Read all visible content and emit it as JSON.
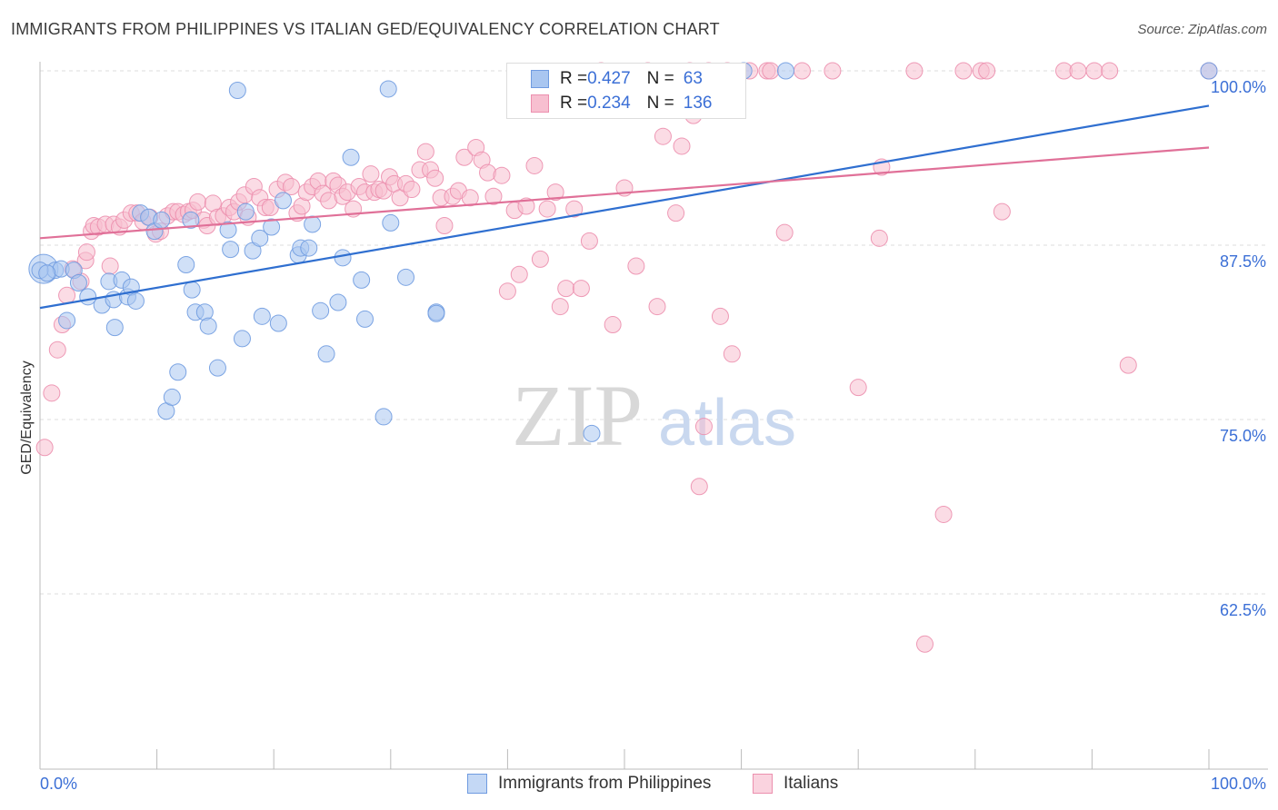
{
  "title": "IMMIGRANTS FROM PHILIPPINES VS ITALIAN GED/EQUIVALENCY CORRELATION CHART",
  "source": "Source: ZipAtlas.com",
  "watermark": {
    "zip": "ZIP",
    "atlas": "atlas"
  },
  "legend_top": {
    "rows": [
      {
        "r_label": "R = ",
        "r_value": "0.427",
        "n_label": "N = ",
        "n_value": "63"
      },
      {
        "r_label": "R = ",
        "r_value": "0.234",
        "n_label": "N = ",
        "n_value": "136"
      }
    ]
  },
  "chart_data": {
    "type": "scatter",
    "title": "IMMIGRANTS FROM PHILIPPINES VS ITALIAN GED/EQUIVALENCY CORRELATION CHART",
    "xlabel": "",
    "ylabel": "GED/Equivalency",
    "xlim": [
      0,
      100
    ],
    "ylim": [
      50,
      101.5
    ],
    "x_tick_labels": [
      "0.0%",
      "100.0%"
    ],
    "y_ticks": [
      62.5,
      75.0,
      87.5,
      100.0
    ],
    "y_tick_labels": [
      "62.5%",
      "75.0%",
      "87.5%",
      "100.0%"
    ],
    "grid": true,
    "legend_position": "bottom",
    "series": [
      {
        "name": "Immigrants from Philippines",
        "color": "#a9c6f0",
        "stroke": "#6f9be0",
        "line_color": "#2f6fd0",
        "r": 0.427,
        "n": 63,
        "trend": [
          [
            0,
            83.0
          ],
          [
            100,
            97.5
          ]
        ],
        "points": [
          [
            0.3,
            85.8
          ],
          [
            1.3,
            85.7
          ],
          [
            1.8,
            85.8
          ],
          [
            2.3,
            82.1
          ],
          [
            2.9,
            85.7
          ],
          [
            3.3,
            84.8
          ],
          [
            4.1,
            83.8
          ],
          [
            5.3,
            83.2
          ],
          [
            5.9,
            84.9
          ],
          [
            6.3,
            83.6
          ],
          [
            6.4,
            81.6
          ],
          [
            7.0,
            85.0
          ],
          [
            7.5,
            83.8
          ],
          [
            7.8,
            84.5
          ],
          [
            8.2,
            83.5
          ],
          [
            8.6,
            89.8
          ],
          [
            9.3,
            89.5
          ],
          [
            9.8,
            88.5
          ],
          [
            10.4,
            89.3
          ],
          [
            10.8,
            75.6
          ],
          [
            11.3,
            76.6
          ],
          [
            11.8,
            78.4
          ],
          [
            12.5,
            86.1
          ],
          [
            12.9,
            89.3
          ],
          [
            13.0,
            84.3
          ],
          [
            13.3,
            82.7
          ],
          [
            14.1,
            82.7
          ],
          [
            14.4,
            81.7
          ],
          [
            15.2,
            78.7
          ],
          [
            16.1,
            88.6
          ],
          [
            16.3,
            87.2
          ],
          [
            16.9,
            98.6
          ],
          [
            17.3,
            80.8
          ],
          [
            17.6,
            89.9
          ],
          [
            18.2,
            87.1
          ],
          [
            18.8,
            88.0
          ],
          [
            19.0,
            82.4
          ],
          [
            19.8,
            88.8
          ],
          [
            20.4,
            81.9
          ],
          [
            20.8,
            90.7
          ],
          [
            22.1,
            86.8
          ],
          [
            22.3,
            87.3
          ],
          [
            23.0,
            87.3
          ],
          [
            23.3,
            89.0
          ],
          [
            24.0,
            82.8
          ],
          [
            24.5,
            79.7
          ],
          [
            25.5,
            83.4
          ],
          [
            25.9,
            86.6
          ],
          [
            26.6,
            93.8
          ],
          [
            27.5,
            85.0
          ],
          [
            27.8,
            82.2
          ],
          [
            29.4,
            75.2
          ],
          [
            29.8,
            98.7
          ],
          [
            30.0,
            89.1
          ],
          [
            31.3,
            85.2
          ],
          [
            33.9,
            82.7
          ],
          [
            33.9,
            82.6
          ],
          [
            47.2,
            74.0
          ],
          [
            60.2,
            100.0
          ],
          [
            63.8,
            100.0
          ],
          [
            100.0,
            100.0
          ],
          [
            0.0,
            85.7
          ],
          [
            0.6,
            85.5
          ]
        ]
      },
      {
        "name": "Italians",
        "color": "#f7bfd0",
        "stroke": "#ec8fae",
        "line_color": "#e07098",
        "r": 0.234,
        "n": 136,
        "trend": [
          [
            0,
            88.0
          ],
          [
            100,
            94.5
          ]
        ],
        "points": [
          [
            0.4,
            73.0
          ],
          [
            1.0,
            76.9
          ],
          [
            1.5,
            80.0
          ],
          [
            1.9,
            81.8
          ],
          [
            2.3,
            83.9
          ],
          [
            2.8,
            85.8
          ],
          [
            3.5,
            84.9
          ],
          [
            3.9,
            86.4
          ],
          [
            4.0,
            87.0
          ],
          [
            4.4,
            88.5
          ],
          [
            4.6,
            88.9
          ],
          [
            5.0,
            88.8
          ],
          [
            5.6,
            89.0
          ],
          [
            6.0,
            86.0
          ],
          [
            6.3,
            89.0
          ],
          [
            6.8,
            88.8
          ],
          [
            7.2,
            89.3
          ],
          [
            7.8,
            89.8
          ],
          [
            8.3,
            89.8
          ],
          [
            8.8,
            89.2
          ],
          [
            9.4,
            89.5
          ],
          [
            9.9,
            88.3
          ],
          [
            10.3,
            88.5
          ],
          [
            10.9,
            89.6
          ],
          [
            11.4,
            89.9
          ],
          [
            11.8,
            89.9
          ],
          [
            12.3,
            89.7
          ],
          [
            12.7,
            89.9
          ],
          [
            13.1,
            90.0
          ],
          [
            13.5,
            90.6
          ],
          [
            14.0,
            89.3
          ],
          [
            14.3,
            88.9
          ],
          [
            14.8,
            90.5
          ],
          [
            15.2,
            89.5
          ],
          [
            15.7,
            89.6
          ],
          [
            16.2,
            90.2
          ],
          [
            16.6,
            89.9
          ],
          [
            17.0,
            90.6
          ],
          [
            17.5,
            91.1
          ],
          [
            17.8,
            89.5
          ],
          [
            18.3,
            91.7
          ],
          [
            18.8,
            90.9
          ],
          [
            19.3,
            90.2
          ],
          [
            19.7,
            90.2
          ],
          [
            20.3,
            91.5
          ],
          [
            21.0,
            92.0
          ],
          [
            21.5,
            91.7
          ],
          [
            22.0,
            89.8
          ],
          [
            22.4,
            90.3
          ],
          [
            22.8,
            91.3
          ],
          [
            23.3,
            91.7
          ],
          [
            23.8,
            92.1
          ],
          [
            24.2,
            91.2
          ],
          [
            24.7,
            90.7
          ],
          [
            25.1,
            92.1
          ],
          [
            25.5,
            91.8
          ],
          [
            25.9,
            91.0
          ],
          [
            26.3,
            91.3
          ],
          [
            26.8,
            90.1
          ],
          [
            27.3,
            91.7
          ],
          [
            27.8,
            91.3
          ],
          [
            28.3,
            92.6
          ],
          [
            28.6,
            91.3
          ],
          [
            29.0,
            91.5
          ],
          [
            29.4,
            91.4
          ],
          [
            29.9,
            92.4
          ],
          [
            30.3,
            91.9
          ],
          [
            30.8,
            90.9
          ],
          [
            31.3,
            91.9
          ],
          [
            31.8,
            91.5
          ],
          [
            32.5,
            92.9
          ],
          [
            33.0,
            94.2
          ],
          [
            33.4,
            92.9
          ],
          [
            33.8,
            92.3
          ],
          [
            34.3,
            90.9
          ],
          [
            34.6,
            88.9
          ],
          [
            35.3,
            91.0
          ],
          [
            35.8,
            91.4
          ],
          [
            36.3,
            93.8
          ],
          [
            36.8,
            90.9
          ],
          [
            37.3,
            94.5
          ],
          [
            37.8,
            93.6
          ],
          [
            38.3,
            92.7
          ],
          [
            38.8,
            91.0
          ],
          [
            39.5,
            92.5
          ],
          [
            40.0,
            84.2
          ],
          [
            40.6,
            90.0
          ],
          [
            41.0,
            85.4
          ],
          [
            41.6,
            90.3
          ],
          [
            42.3,
            93.2
          ],
          [
            42.8,
            86.5
          ],
          [
            43.4,
            90.1
          ],
          [
            44.1,
            91.3
          ],
          [
            44.5,
            83.1
          ],
          [
            45.0,
            84.4
          ],
          [
            45.7,
            90.1
          ],
          [
            46.3,
            84.4
          ],
          [
            47.0,
            87.8
          ],
          [
            47.5,
            97.2
          ],
          [
            48.0,
            100.0
          ],
          [
            49.0,
            81.8
          ],
          [
            50.0,
            91.6
          ],
          [
            51.0,
            86.0
          ],
          [
            52.0,
            100.0
          ],
          [
            52.8,
            83.1
          ],
          [
            53.3,
            95.3
          ],
          [
            54.4,
            89.8
          ],
          [
            54.9,
            94.6
          ],
          [
            55.6,
            100.0
          ],
          [
            55.9,
            96.8
          ],
          [
            56.4,
            70.2
          ],
          [
            56.8,
            74.5
          ],
          [
            57.2,
            100.0
          ],
          [
            58.2,
            82.4
          ],
          [
            58.8,
            100.0
          ],
          [
            59.2,
            79.7
          ],
          [
            60.7,
            100.0
          ],
          [
            62.2,
            100.0
          ],
          [
            62.5,
            100.0
          ],
          [
            63.7,
            88.4
          ],
          [
            65.2,
            100.0
          ],
          [
            67.8,
            100.0
          ],
          [
            70.0,
            77.3
          ],
          [
            71.8,
            88.0
          ],
          [
            72.0,
            93.1
          ],
          [
            74.8,
            100.0
          ],
          [
            75.7,
            58.9
          ],
          [
            77.3,
            68.2
          ],
          [
            79.0,
            100.0
          ],
          [
            80.5,
            100.0
          ],
          [
            82.3,
            89.9
          ],
          [
            87.6,
            100.0
          ],
          [
            88.8,
            100.0
          ],
          [
            90.2,
            100.0
          ],
          [
            91.5,
            100.0
          ],
          [
            100.0,
            100.0
          ],
          [
            93.1,
            78.9
          ],
          [
            81.0,
            100.0
          ]
        ]
      }
    ]
  }
}
